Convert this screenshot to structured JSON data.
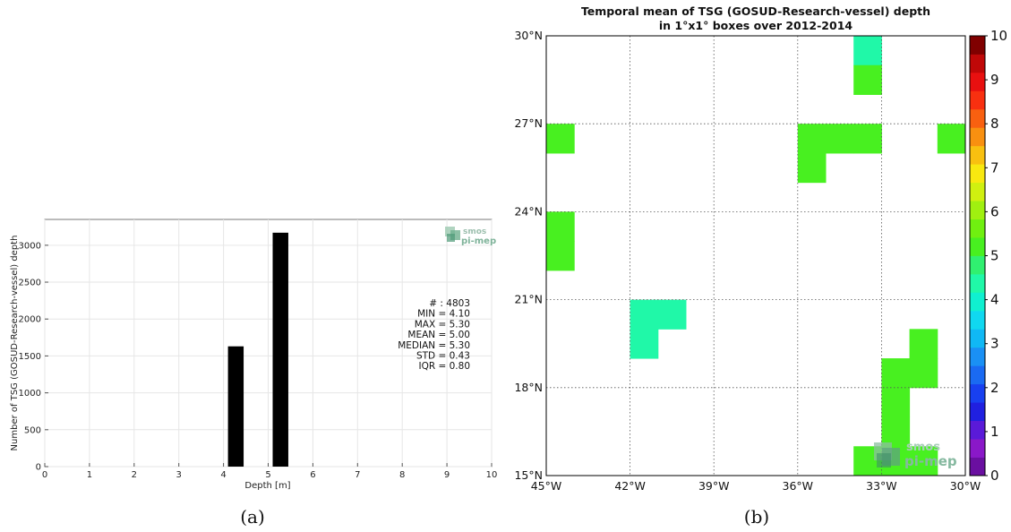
{
  "chart_data": [
    {
      "type": "bar",
      "xlabel": "Depth [m]",
      "ylabel": "Number of TSG (GOSUD-Research-vessel) depth",
      "xlim": [
        0,
        10
      ],
      "ylim": [
        0,
        3350
      ],
      "xticks": [
        0,
        1,
        2,
        3,
        4,
        5,
        6,
        7,
        8,
        9,
        10
      ],
      "yticks": [
        0,
        500,
        1000,
        1500,
        2000,
        2500,
        3000
      ],
      "grid": true,
      "bars": [
        {
          "x0": 4.1,
          "x1": 4.45,
          "value": 1630
        },
        {
          "x0": 5.1,
          "x1": 5.45,
          "value": 3170
        }
      ],
      "stats": [
        "# : 4803",
        "MIN = 4.10",
        "MAX =  5.30",
        "MEAN = 5.00",
        "MEDIAN = 5.30",
        "STD = 0.43",
        "IQR = 0.80"
      ],
      "logo": {
        "line1": "smos",
        "line2": "pi-mep"
      },
      "caption": "(a)"
    },
    {
      "type": "heatmap",
      "title_line1": "Temporal mean of TSG (GOSUD-Research-vessel) depth",
      "title_line2": "in 1°x1° boxes over 2012-2014",
      "lon_range": [
        -45,
        -30
      ],
      "lat_range": [
        15,
        30
      ],
      "xticks": [
        {
          "value": -45,
          "label": "45°W"
        },
        {
          "value": -42,
          "label": "42°W"
        },
        {
          "value": -39,
          "label": "39°W"
        },
        {
          "value": -36,
          "label": "36°W"
        },
        {
          "value": -33,
          "label": "33°W"
        },
        {
          "value": -30,
          "label": "30°W"
        }
      ],
      "yticks": [
        {
          "value": 15,
          "label": "15°N"
        },
        {
          "value": 18,
          "label": "18°N"
        },
        {
          "value": 21,
          "label": "21°N"
        },
        {
          "value": 24,
          "label": "24°N"
        },
        {
          "value": 27,
          "label": "27°N"
        },
        {
          "value": 30,
          "label": "30°N"
        }
      ],
      "grid": "dotted",
      "colorbar": {
        "min": 0,
        "max": 10,
        "ticks": [
          0,
          1,
          2,
          3,
          4,
          5,
          6,
          7,
          8,
          9,
          10
        ],
        "colors": [
          "#6a0fa0",
          "#8a18c8",
          "#5a1ad8",
          "#2020e0",
          "#1840f0",
          "#1a6af2",
          "#1a90f4",
          "#10b8f4",
          "#10d8f0",
          "#10f0d0",
          "#20f8a8",
          "#30f070",
          "#48f020",
          "#70f010",
          "#a0f010",
          "#d0f010",
          "#f8e810",
          "#f8c010",
          "#f89010",
          "#f86010",
          "#f83010",
          "#e81010",
          "#c00808",
          "#800000"
        ]
      },
      "cells": [
        {
          "lon": -34,
          "lat": 29,
          "value": 4.3
        },
        {
          "lon": -34,
          "lat": 28,
          "value": 5.2
        },
        {
          "lon": -45,
          "lat": 26,
          "value": 5.1
        },
        {
          "lon": -36,
          "lat": 26,
          "value": 5.2
        },
        {
          "lon": -35,
          "lat": 26,
          "value": 5.2
        },
        {
          "lon": -34,
          "lat": 26,
          "value": 5.2
        },
        {
          "lon": -36,
          "lat": 25,
          "value": 5.2
        },
        {
          "lon": -31,
          "lat": 26,
          "value": 5.1
        },
        {
          "lon": -45,
          "lat": 23,
          "value": 5.2
        },
        {
          "lon": -45,
          "lat": 22,
          "value": 5.2
        },
        {
          "lon": -42,
          "lat": 20,
          "value": 4.3
        },
        {
          "lon": -41,
          "lat": 20,
          "value": 4.3
        },
        {
          "lon": -42,
          "lat": 19,
          "value": 4.3
        },
        {
          "lon": -32,
          "lat": 19,
          "value": 5.2
        },
        {
          "lon": -33,
          "lat": 18,
          "value": 5.2
        },
        {
          "lon": -32,
          "lat": 18,
          "value": 5.2
        },
        {
          "lon": -33,
          "lat": 17,
          "value": 5.2
        },
        {
          "lon": -33,
          "lat": 16,
          "value": 5.2
        },
        {
          "lon": -34,
          "lat": 15,
          "value": 5.2
        },
        {
          "lon": -33,
          "lat": 15,
          "value": 5.2
        },
        {
          "lon": -32,
          "lat": 15,
          "value": 5.2
        }
      ],
      "logo": {
        "line1": "smos",
        "line2": "pi-mep"
      },
      "caption": "(b)"
    }
  ]
}
